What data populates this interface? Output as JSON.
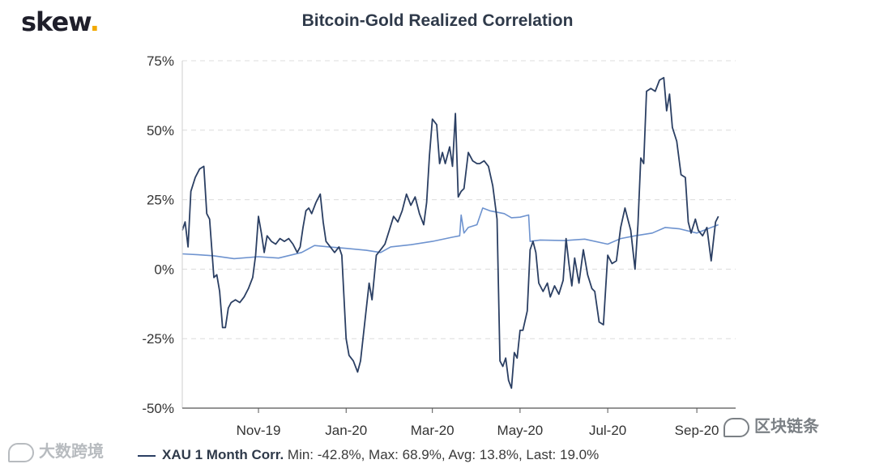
{
  "logo": {
    "text": "skew",
    "dot": "."
  },
  "chart_data": {
    "type": "line",
    "title": "Bitcoin-Gold Realized Correlation",
    "xlabel": "",
    "ylabel": "",
    "y_ticks": [
      "75%",
      "50%",
      "25%",
      "0%",
      "-25%",
      "-50%"
    ],
    "y_tick_values": [
      75,
      50,
      25,
      0,
      -25,
      -50
    ],
    "ylim": [
      -50,
      75
    ],
    "x_ticks": [
      "Nov-19",
      "Jan-20",
      "Mar-20",
      "May-20",
      "Jul-20",
      "Sep-20"
    ],
    "x_tick_values": [
      "2019-11-01",
      "2020-01-01",
      "2020-03-01",
      "2020-05-01",
      "2020-07-01",
      "2020-09-01"
    ],
    "xlim": [
      "2019-09-09",
      "2020-09-28"
    ],
    "grid": "horizontal dashed",
    "legend_position": "bottom-left",
    "series": [
      {
        "name": "XAU 1 Month Corr.",
        "stats": "Min: -42.8%, Max: 68.9%, Avg: 13.8%, Last: 19.0%",
        "color": "#2b3f63",
        "points": [
          [
            "2019-09-09",
            14
          ],
          [
            "2019-09-11",
            17
          ],
          [
            "2019-09-13",
            8
          ],
          [
            "2019-09-15",
            28
          ],
          [
            "2019-09-18",
            33
          ],
          [
            "2019-09-21",
            36
          ],
          [
            "2019-09-24",
            37
          ],
          [
            "2019-09-26",
            20
          ],
          [
            "2019-09-28",
            18
          ],
          [
            "2019-10-01",
            -3
          ],
          [
            "2019-10-03",
            -2
          ],
          [
            "2019-10-05",
            -8
          ],
          [
            "2019-10-07",
            -21
          ],
          [
            "2019-10-09",
            -21
          ],
          [
            "2019-10-11",
            -14
          ],
          [
            "2019-10-13",
            -12
          ],
          [
            "2019-10-16",
            -11
          ],
          [
            "2019-10-19",
            -12
          ],
          [
            "2019-10-22",
            -10
          ],
          [
            "2019-10-25",
            -7
          ],
          [
            "2019-10-28",
            -3
          ],
          [
            "2019-10-30",
            5
          ],
          [
            "2019-11-01",
            19
          ],
          [
            "2019-11-03",
            13
          ],
          [
            "2019-11-05",
            6
          ],
          [
            "2019-11-07",
            12
          ],
          [
            "2019-11-10",
            10
          ],
          [
            "2019-11-13",
            9
          ],
          [
            "2019-11-16",
            11
          ],
          [
            "2019-11-19",
            10
          ],
          [
            "2019-11-22",
            11
          ],
          [
            "2019-11-25",
            9
          ],
          [
            "2019-11-28",
            6
          ],
          [
            "2019-11-30",
            8
          ],
          [
            "2019-12-02",
            15
          ],
          [
            "2019-12-04",
            21
          ],
          [
            "2019-12-06",
            22
          ],
          [
            "2019-12-08",
            20
          ],
          [
            "2019-12-11",
            24
          ],
          [
            "2019-12-14",
            27
          ],
          [
            "2019-12-16",
            17
          ],
          [
            "2019-12-18",
            10
          ],
          [
            "2019-12-21",
            8
          ],
          [
            "2019-12-24",
            6
          ],
          [
            "2019-12-27",
            8
          ],
          [
            "2019-12-29",
            5
          ],
          [
            "2020-01-01",
            -25
          ],
          [
            "2020-01-03",
            -31
          ],
          [
            "2020-01-06",
            -33
          ],
          [
            "2020-01-09",
            -37
          ],
          [
            "2020-01-11",
            -33
          ],
          [
            "2020-01-14",
            -19
          ],
          [
            "2020-01-17",
            -5
          ],
          [
            "2020-01-19",
            -11
          ],
          [
            "2020-01-22",
            5
          ],
          [
            "2020-01-25",
            7
          ],
          [
            "2020-01-28",
            9
          ],
          [
            "2020-01-31",
            14
          ],
          [
            "2020-02-03",
            19
          ],
          [
            "2020-02-06",
            17
          ],
          [
            "2020-02-09",
            21
          ],
          [
            "2020-02-12",
            27
          ],
          [
            "2020-02-15",
            23
          ],
          [
            "2020-02-18",
            26
          ],
          [
            "2020-02-21",
            20
          ],
          [
            "2020-02-24",
            16
          ],
          [
            "2020-02-26",
            24
          ],
          [
            "2020-02-28",
            41
          ],
          [
            "2020-03-01",
            54
          ],
          [
            "2020-03-04",
            52
          ],
          [
            "2020-03-06",
            38
          ],
          [
            "2020-03-08",
            42
          ],
          [
            "2020-03-10",
            38
          ],
          [
            "2020-03-13",
            44
          ],
          [
            "2020-03-15",
            37
          ],
          [
            "2020-03-17",
            56
          ],
          [
            "2020-03-19",
            26
          ],
          [
            "2020-03-21",
            28
          ],
          [
            "2020-03-23",
            29
          ],
          [
            "2020-03-26",
            42
          ],
          [
            "2020-03-29",
            39
          ],
          [
            "2020-04-01",
            38
          ],
          [
            "2020-04-03",
            38
          ],
          [
            "2020-04-06",
            39
          ],
          [
            "2020-04-09",
            37
          ],
          [
            "2020-04-12",
            30
          ],
          [
            "2020-04-15",
            18
          ],
          [
            "2020-04-17",
            -33
          ],
          [
            "2020-04-19",
            -35
          ],
          [
            "2020-04-21",
            -32
          ],
          [
            "2020-04-23",
            -40
          ],
          [
            "2020-04-25",
            -42.8
          ],
          [
            "2020-04-27",
            -30
          ],
          [
            "2020-04-29",
            -32
          ],
          [
            "2020-05-01",
            -22
          ],
          [
            "2020-05-03",
            -22
          ],
          [
            "2020-05-06",
            -15
          ],
          [
            "2020-05-08",
            7
          ],
          [
            "2020-05-10",
            10
          ],
          [
            "2020-05-12",
            6
          ],
          [
            "2020-05-14",
            -5
          ],
          [
            "2020-05-17",
            -8
          ],
          [
            "2020-05-20",
            -5
          ],
          [
            "2020-05-22",
            -10
          ],
          [
            "2020-05-25",
            -6
          ],
          [
            "2020-05-28",
            -9
          ],
          [
            "2020-05-31",
            -4
          ],
          [
            "2020-06-02",
            11
          ],
          [
            "2020-06-04",
            2
          ],
          [
            "2020-06-06",
            -6
          ],
          [
            "2020-06-08",
            4
          ],
          [
            "2020-06-11",
            -5
          ],
          [
            "2020-06-14",
            7
          ],
          [
            "2020-06-17",
            -2
          ],
          [
            "2020-06-20",
            -7
          ],
          [
            "2020-06-22",
            -8
          ],
          [
            "2020-06-25",
            -19
          ],
          [
            "2020-06-28",
            -20
          ],
          [
            "2020-07-01",
            5
          ],
          [
            "2020-07-04",
            2
          ],
          [
            "2020-07-07",
            3
          ],
          [
            "2020-07-10",
            15
          ],
          [
            "2020-07-13",
            22
          ],
          [
            "2020-07-15",
            18
          ],
          [
            "2020-07-17",
            14
          ],
          [
            "2020-07-20",
            0
          ],
          [
            "2020-07-22",
            16
          ],
          [
            "2020-07-24",
            40
          ],
          [
            "2020-07-26",
            38
          ],
          [
            "2020-07-28",
            64
          ],
          [
            "2020-07-31",
            65
          ],
          [
            "2020-08-03",
            64
          ],
          [
            "2020-08-06",
            68
          ],
          [
            "2020-08-09",
            68.9
          ],
          [
            "2020-08-11",
            57
          ],
          [
            "2020-08-13",
            63
          ],
          [
            "2020-08-15",
            51
          ],
          [
            "2020-08-18",
            46
          ],
          [
            "2020-08-21",
            34
          ],
          [
            "2020-08-24",
            33
          ],
          [
            "2020-08-26",
            17
          ],
          [
            "2020-08-28",
            13
          ],
          [
            "2020-08-31",
            18
          ],
          [
            "2020-09-02",
            14
          ],
          [
            "2020-09-05",
            12
          ],
          [
            "2020-09-08",
            15
          ],
          [
            "2020-09-11",
            3
          ],
          [
            "2020-09-14",
            17
          ],
          [
            "2020-09-16",
            19
          ]
        ]
      },
      {
        "name": "",
        "color": "#6e93cf",
        "points": [
          [
            "2019-09-09",
            5.5
          ],
          [
            "2019-09-20",
            5.2
          ],
          [
            "2019-10-01",
            4.8
          ],
          [
            "2019-10-15",
            3.8
          ],
          [
            "2019-11-01",
            4.5
          ],
          [
            "2019-11-15",
            4
          ],
          [
            "2019-12-01",
            6
          ],
          [
            "2019-12-10",
            8.5
          ],
          [
            "2019-12-20",
            8
          ],
          [
            "2020-01-01",
            7.5
          ],
          [
            "2020-01-15",
            6.8
          ],
          [
            "2020-01-25",
            6
          ],
          [
            "2020-02-01",
            8
          ],
          [
            "2020-02-15",
            8.8
          ],
          [
            "2020-03-01",
            10
          ],
          [
            "2020-03-15",
            11.5
          ],
          [
            "2020-03-20",
            12
          ],
          [
            "2020-03-21",
            19.5
          ],
          [
            "2020-03-23",
            13
          ],
          [
            "2020-03-26",
            15
          ],
          [
            "2020-04-01",
            16
          ],
          [
            "2020-04-05",
            22
          ],
          [
            "2020-04-10",
            21
          ],
          [
            "2020-04-20",
            20
          ],
          [
            "2020-04-25",
            18.5
          ],
          [
            "2020-05-01",
            18.7
          ],
          [
            "2020-05-07",
            19.5
          ],
          [
            "2020-05-08",
            10
          ],
          [
            "2020-05-15",
            10.5
          ],
          [
            "2020-06-01",
            10.3
          ],
          [
            "2020-06-15",
            10.8
          ],
          [
            "2020-07-01",
            9
          ],
          [
            "2020-07-10",
            11
          ],
          [
            "2020-07-20",
            12
          ],
          [
            "2020-08-01",
            13
          ],
          [
            "2020-08-10",
            15
          ],
          [
            "2020-08-20",
            14.5
          ],
          [
            "2020-09-01",
            13
          ],
          [
            "2020-09-16",
            16
          ]
        ]
      }
    ]
  },
  "legend": {
    "series_name": "XAU 1 Month Corr.",
    "stats": "Min: -42.8%, Max: 68.9%, Avg: 13.8%, Last: 19.0%"
  },
  "watermarks": {
    "left": "大数跨境",
    "right": "区块链条"
  }
}
